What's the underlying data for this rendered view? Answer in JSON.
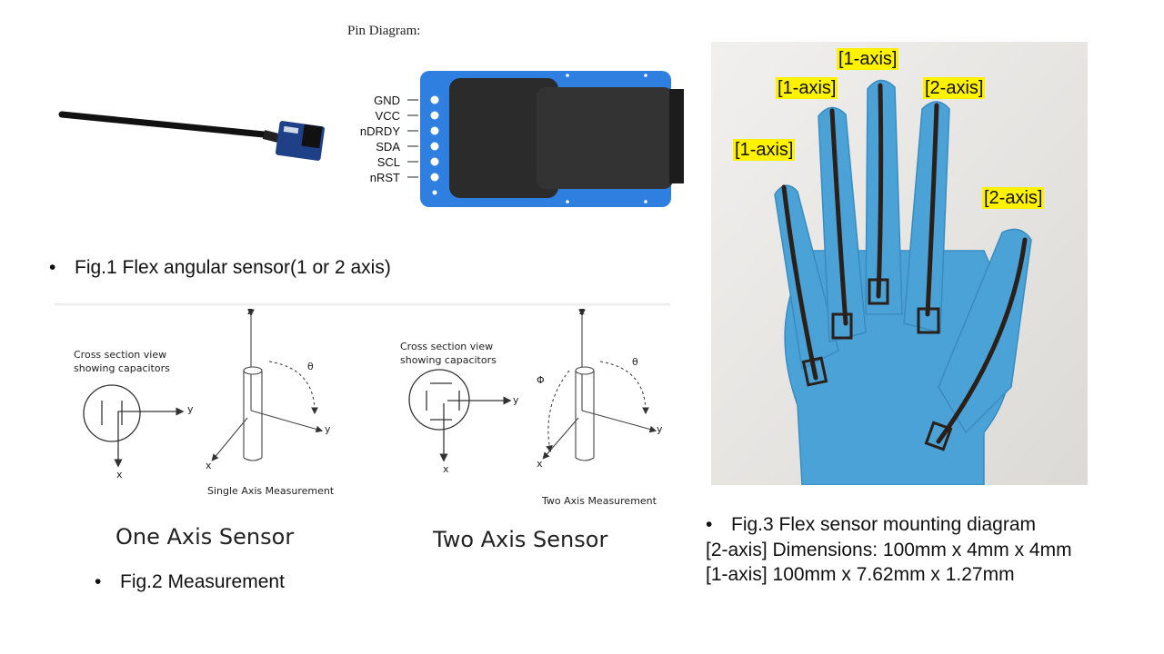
{
  "pin_diagram": {
    "title": "Pin Diagram:",
    "pins": [
      "GND",
      "VCC",
      "nDRDY",
      "SDA",
      "SCL",
      "nRST"
    ]
  },
  "fig1": {
    "bullet": "•",
    "caption": "Fig.1 Flex angular sensor(1 or 2 axis)"
  },
  "fig2": {
    "bullet": "•",
    "caption": "Fig.2 Measurement",
    "one_axis": {
      "cross_section_note_line1": "Cross section view",
      "cross_section_note_line2": "showing capacitors",
      "measurement_label": "Single Axis Measurement",
      "sensor_label": "One Axis  Sensor",
      "axes": {
        "z": "z",
        "y": "y",
        "x": "x",
        "theta": "θ"
      }
    },
    "two_axis": {
      "cross_section_note_line1": "Cross section view",
      "cross_section_note_line2": "showing capacitors",
      "measurement_label": "Two Axis Measurement",
      "sensor_label": "Two Axis  Sensor",
      "axes": {
        "z": "z",
        "y": "y",
        "x": "x",
        "theta": "θ",
        "phi": "Φ"
      }
    }
  },
  "fig3": {
    "bullet": "•",
    "caption": "Fig.3 Flex sensor mounting diagram",
    "line2": "[2-axis] Dimensions: 100mm x 4mm x 4mm",
    "line3": "[1-axis] 100mm x 7.62mm x 1.27mm",
    "finger_tags": {
      "pinky": "[1-axis]",
      "ring": "[1-axis]",
      "middle": "[1-axis]",
      "index": "[2-axis]",
      "thumb": "[2-axis]"
    }
  },
  "colors": {
    "board_blue": "#2f7fe0",
    "glove_blue": "#4aa2d6",
    "tag_yellow": "#fff200"
  }
}
